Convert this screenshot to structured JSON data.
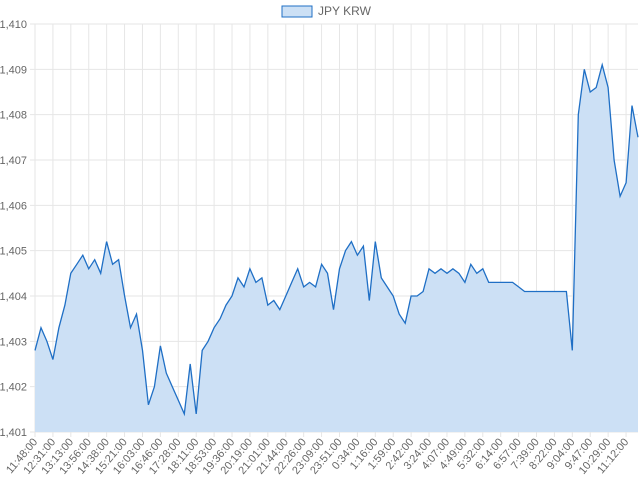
{
  "chart_data": {
    "type": "area",
    "categories": [
      "11:48:00",
      null,
      null,
      "12:31:00",
      null,
      null,
      "13:13:00",
      null,
      null,
      "13:56:00",
      null,
      null,
      "14:38:00",
      null,
      null,
      "15:21:00",
      null,
      null,
      "16:03:00",
      null,
      null,
      "16:46:00",
      null,
      null,
      "17:28:00",
      null,
      null,
      "18:11:00",
      null,
      null,
      "18:53:00",
      null,
      null,
      "19:36:00",
      null,
      null,
      "20:19:00",
      null,
      null,
      "21:01:00",
      null,
      null,
      "21:44:00",
      null,
      null,
      "22:26:00",
      null,
      null,
      "23:09:00",
      null,
      null,
      "23:51:00",
      null,
      null,
      "0:34:00",
      null,
      null,
      "1:16:00",
      null,
      null,
      "1:59:00",
      null,
      null,
      "2:42:00",
      null,
      null,
      "3:24:00",
      null,
      null,
      "4:07:00",
      null,
      null,
      "4:49:00",
      null,
      null,
      "5:32:00",
      null,
      null,
      "6:14:00",
      null,
      null,
      "6:57:00",
      null,
      null,
      "7:39:00",
      null,
      null,
      "8:22:00",
      null,
      null,
      "9:04:00",
      null,
      null,
      "9:47:00",
      null,
      null,
      "10:29:00",
      null,
      null,
      "11:12:00",
      null,
      null
    ],
    "series": [
      {
        "name": "JPY KRW",
        "color": "#1f6fc5",
        "fill": "#cce0f5",
        "values": [
          1402.8,
          1403.3,
          1403.0,
          1402.6,
          1403.3,
          1403.8,
          1404.5,
          1404.7,
          1404.9,
          1404.6,
          1404.8,
          1404.5,
          1405.2,
          1404.7,
          1404.8,
          1404.0,
          1403.3,
          1403.6,
          1402.8,
          1401.6,
          1402.0,
          1402.9,
          1402.3,
          1402.0,
          1401.7,
          1401.4,
          1402.5,
          1401.4,
          1402.8,
          1403.0,
          1403.3,
          1403.5,
          1403.8,
          1404.0,
          1404.4,
          1404.2,
          1404.6,
          1404.3,
          1404.4,
          1403.8,
          1403.9,
          1403.7,
          1404.0,
          1404.3,
          1404.6,
          1404.2,
          1404.3,
          1404.2,
          1404.7,
          1404.5,
          1403.7,
          1404.6,
          1405.0,
          1405.2,
          1404.9,
          1405.1,
          1403.9,
          1405.2,
          1404.4,
          1404.2,
          1404.0,
          1403.6,
          1403.4,
          1404.0,
          1404.0,
          1404.1,
          1404.6,
          1404.5,
          1404.6,
          1404.5,
          1404.6,
          1404.5,
          1404.3,
          1404.7,
          1404.5,
          1404.6,
          1404.3,
          1404.3,
          1404.3,
          1404.3,
          1404.3,
          1404.2,
          1404.1,
          1404.1,
          1404.1,
          1404.1,
          1404.1,
          1404.1,
          1404.1,
          1404.1,
          1402.8,
          1408.0,
          1409.0,
          1408.5,
          1408.6,
          1409.1,
          1408.6,
          1407.0,
          1406.2,
          1406.5,
          1408.2,
          1407.5
        ]
      }
    ],
    "ylim": [
      1401,
      1410
    ],
    "yticks": [
      {
        "value": 1401,
        "label": "1,401"
      },
      {
        "value": 1402,
        "label": "1,402"
      },
      {
        "value": 1403,
        "label": "1,403"
      },
      {
        "value": 1404,
        "label": "1,404"
      },
      {
        "value": 1405,
        "label": "1,405"
      },
      {
        "value": 1406,
        "label": "1,406"
      },
      {
        "value": 1407,
        "label": "1,407"
      },
      {
        "value": 1408,
        "label": "1,408"
      },
      {
        "value": 1409,
        "label": "1,409"
      },
      {
        "value": 1410,
        "label": "1,410"
      }
    ],
    "grid": true
  }
}
